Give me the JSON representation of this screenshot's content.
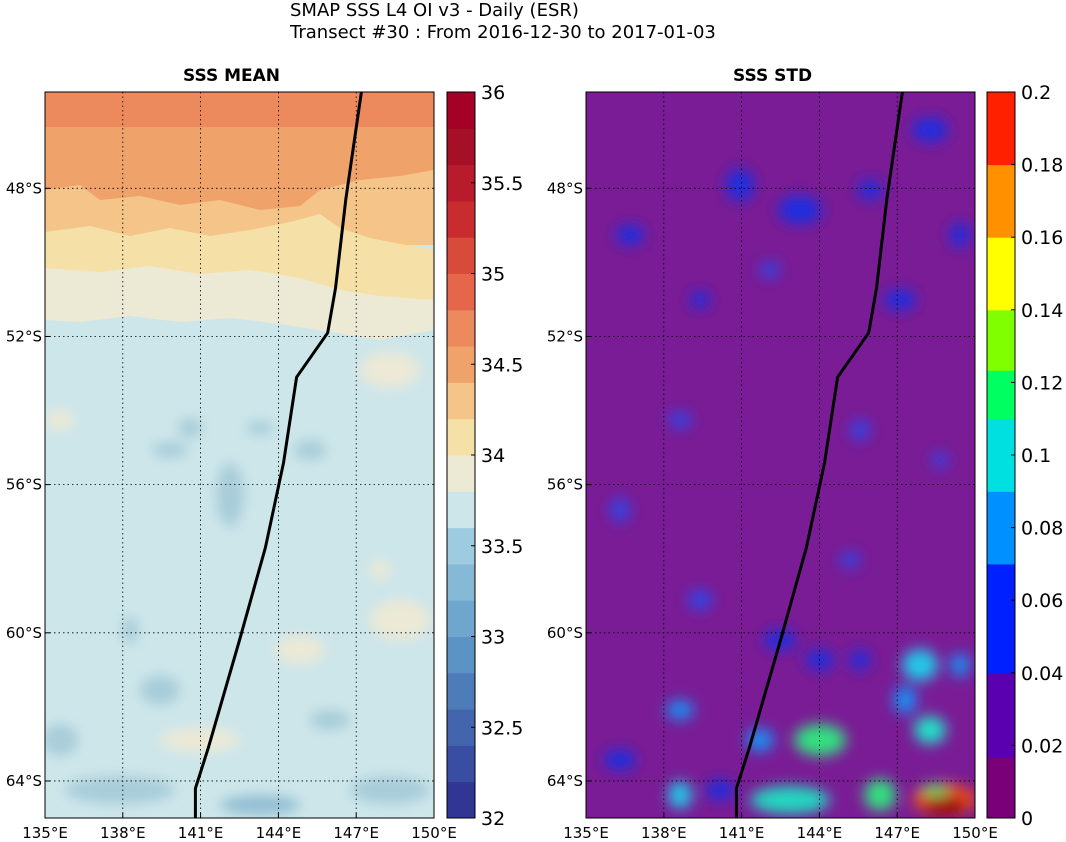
{
  "header": {
    "title_line1": "SMAP SSS L4 OI v3 - Daily (ESR)",
    "title_line2": "Transect #30 : From 2016-12-30 to 2017-01-03"
  },
  "chart_data": [
    {
      "type": "heatmap",
      "title": "SSS MEAN",
      "xlabel": "",
      "ylabel": "",
      "xlim": [
        135,
        150
      ],
      "ylim": [
        -65,
        -45.4
      ],
      "x_ticks": [
        "135°E",
        "138°E",
        "141°E",
        "144°E",
        "147°E",
        "150°E"
      ],
      "y_ticks": [
        "48°S",
        "52°S",
        "56°S",
        "60°S",
        "64°S"
      ],
      "colorbar": {
        "range": [
          32,
          36
        ],
        "step": 0.25,
        "tick_labels": [
          "32",
          "32.5",
          "33",
          "33.5",
          "34",
          "34.5",
          "35",
          "35.5",
          "36"
        ],
        "colormap": "RdYlBu_r (banded)"
      },
      "grid": true,
      "field_description_values": {
        "north_band_max": 34.9,
        "50S_band": 34.4,
        "52S_band": 34.1,
        "south_background": 33.9,
        "south_patches_min": 33.6
      },
      "overlay": "transect track (black line)"
    },
    {
      "type": "heatmap",
      "title": "SSS STD",
      "xlabel": "",
      "ylabel": "",
      "xlim": [
        135,
        150
      ],
      "ylim": [
        -65,
        -45.4
      ],
      "x_ticks": [
        "135°E",
        "138°E",
        "141°E",
        "144°E",
        "147°E",
        "150°E"
      ],
      "y_ticks": [
        "48°S",
        "52°S",
        "56°S",
        "60°S",
        "64°S"
      ],
      "colorbar": {
        "range": [
          0,
          0.2
        ],
        "tick_labels": [
          "0",
          "0.02",
          "0.04",
          "0.06",
          "0.08",
          "0.1",
          "0.12",
          "0.14",
          "0.16",
          "0.18",
          "0.2"
        ],
        "colormap": "jet-like (purple-blue-green-yellow-red)"
      },
      "grid": true,
      "field_description_values": {
        "background": 0.015,
        "blue_blobs": 0.04,
        "south_blobs": 0.075,
        "max_southeast": 0.2
      },
      "overlay": "transect track (black line)"
    }
  ],
  "track": {
    "lon": [
      147.2,
      146.6,
      146.2,
      145.9,
      144.7,
      144.2,
      143.5,
      142.5,
      141.3,
      140.8,
      140.8
    ],
    "lat": [
      -45.4,
      -48.3,
      -50.7,
      -51.9,
      -53.1,
      -55.4,
      -57.7,
      -60.2,
      -63.1,
      -64.2,
      -65.0
    ]
  },
  "colors": {
    "track": "#000000",
    "grid": "#000000"
  }
}
